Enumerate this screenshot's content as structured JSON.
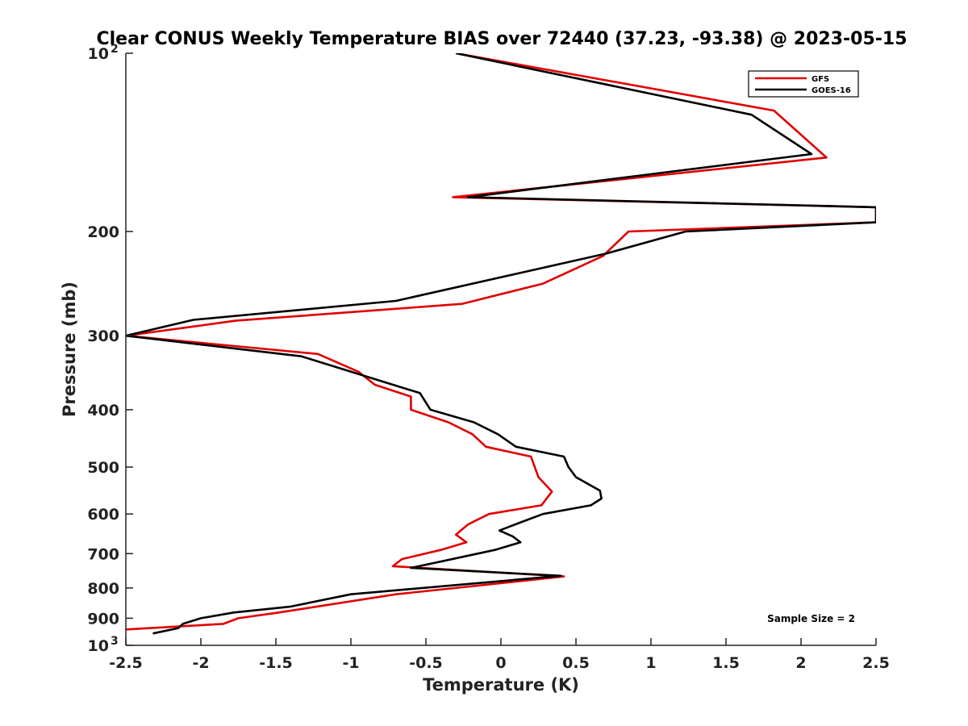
{
  "chart_data": {
    "type": "line",
    "title": "Clear CONUS Weekly Temperature BIAS over 72440 (37.23, -93.38) @ 2023-05-15",
    "xlabel": "Temperature (K)",
    "ylabel": "Pressure (mb)",
    "xlim": [
      -2.5,
      2.5
    ],
    "ylim": [
      100,
      1000
    ],
    "yscale": "log",
    "y_reversed": true,
    "grid": false,
    "legend_position": "top-right",
    "annotation": "Sample Size = 2",
    "x_ticks": [
      {
        "value": -2.5,
        "label": "-2.5"
      },
      {
        "value": -2,
        "label": "-2"
      },
      {
        "value": -1.5,
        "label": "-1.5"
      },
      {
        "value": -1,
        "label": "-1"
      },
      {
        "value": -0.5,
        "label": "-0.5"
      },
      {
        "value": 0,
        "label": "0"
      },
      {
        "value": 0.5,
        "label": "0.5"
      },
      {
        "value": 1,
        "label": "1"
      },
      {
        "value": 1.5,
        "label": "1.5"
      },
      {
        "value": 2,
        "label": "2"
      },
      {
        "value": 2.5,
        "label": "2.5"
      }
    ],
    "y_ticks": [
      {
        "value": 100,
        "label": "10",
        "sup": "2"
      },
      {
        "value": 200,
        "label": "200",
        "sup": ""
      },
      {
        "value": 300,
        "label": "300",
        "sup": ""
      },
      {
        "value": 400,
        "label": "400",
        "sup": ""
      },
      {
        "value": 500,
        "label": "500",
        "sup": ""
      },
      {
        "value": 600,
        "label": "600",
        "sup": ""
      },
      {
        "value": 700,
        "label": "700",
        "sup": ""
      },
      {
        "value": 800,
        "label": "800",
        "sup": ""
      },
      {
        "value": 900,
        "label": "900",
        "sup": ""
      },
      {
        "value": 1000,
        "label": "10",
        "sup": "3"
      }
    ],
    "series": [
      {
        "name": "GFS",
        "color": "#e00000",
        "points": [
          [
            -0.3,
            100
          ],
          [
            1.82,
            125
          ],
          [
            2.17,
            150
          ],
          [
            -0.32,
            175
          ],
          [
            2.5,
            182
          ],
          [
            2.5,
            193
          ],
          [
            0.85,
            200
          ],
          [
            0.68,
            220
          ],
          [
            0.28,
            245
          ],
          [
            -0.26,
            265
          ],
          [
            -1.77,
            283
          ],
          [
            -2.5,
            300
          ],
          [
            -1.22,
            322
          ],
          [
            -0.95,
            345
          ],
          [
            -0.84,
            363
          ],
          [
            -0.6,
            380
          ],
          [
            -0.6,
            400
          ],
          [
            -0.35,
            420
          ],
          [
            -0.19,
            440
          ],
          [
            -0.1,
            462
          ],
          [
            0.2,
            480
          ],
          [
            0.25,
            520
          ],
          [
            0.34,
            550
          ],
          [
            0.27,
            580
          ],
          [
            -0.08,
            600
          ],
          [
            -0.22,
            625
          ],
          [
            -0.3,
            650
          ],
          [
            -0.23,
            670
          ],
          [
            -0.4,
            690
          ],
          [
            -0.66,
            715
          ],
          [
            -0.72,
            735
          ],
          [
            0.42,
            765
          ],
          [
            -0.7,
            820
          ],
          [
            -1.48,
            880
          ],
          [
            -1.75,
            900
          ],
          [
            -1.85,
            920
          ],
          [
            -2.5,
            940
          ]
        ]
      },
      {
        "name": "GOES-16",
        "color": "#000000",
        "points": [
          [
            -0.3,
            100
          ],
          [
            1.67,
            127
          ],
          [
            2.07,
            148
          ],
          [
            -0.22,
            175
          ],
          [
            2.5,
            182
          ],
          [
            2.5,
            193
          ],
          [
            1.23,
            200
          ],
          [
            0.7,
            218
          ],
          [
            -0.7,
            262
          ],
          [
            -2.05,
            282
          ],
          [
            -2.5,
            300
          ],
          [
            -1.33,
            325
          ],
          [
            -1.0,
            345
          ],
          [
            -0.54,
            375
          ],
          [
            -0.47,
            400
          ],
          [
            -0.18,
            420
          ],
          [
            -0.02,
            440
          ],
          [
            0.1,
            462
          ],
          [
            0.42,
            480
          ],
          [
            0.45,
            500
          ],
          [
            0.5,
            520
          ],
          [
            0.66,
            548
          ],
          [
            0.67,
            565
          ],
          [
            0.6,
            580
          ],
          [
            0.28,
            600
          ],
          [
            0.13,
            620
          ],
          [
            -0.01,
            640
          ],
          [
            0.08,
            655
          ],
          [
            0.13,
            670
          ],
          [
            -0.04,
            690
          ],
          [
            -0.38,
            720
          ],
          [
            -0.6,
            740
          ],
          [
            0.4,
            763
          ],
          [
            -1.0,
            820
          ],
          [
            -1.4,
            860
          ],
          [
            -1.78,
            880
          ],
          [
            -2.0,
            900
          ],
          [
            -2.12,
            920
          ],
          [
            -2.15,
            935
          ],
          [
            -2.32,
            955
          ]
        ]
      }
    ]
  }
}
